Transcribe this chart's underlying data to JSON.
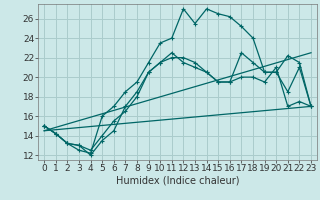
{
  "title": "",
  "xlabel": "Humidex (Indice chaleur)",
  "ylabel": "",
  "bg_color": "#cce8e8",
  "grid_color": "#aacccc",
  "line_color": "#006666",
  "xlim": [
    -0.5,
    23.5
  ],
  "ylim": [
    11.5,
    27.5
  ],
  "xticks": [
    0,
    1,
    2,
    3,
    4,
    5,
    6,
    7,
    8,
    9,
    10,
    11,
    12,
    13,
    14,
    15,
    16,
    17,
    18,
    19,
    20,
    21,
    22,
    23
  ],
  "yticks": [
    12,
    14,
    16,
    18,
    20,
    22,
    24,
    26
  ],
  "line1_x": [
    0,
    1,
    2,
    3,
    4,
    5,
    6,
    7,
    8,
    9,
    10,
    11,
    12,
    13,
    14,
    15,
    16,
    17,
    18,
    19,
    20,
    21,
    22,
    23
  ],
  "line1_y": [
    15.0,
    14.2,
    13.2,
    12.5,
    12.2,
    16.0,
    17.0,
    18.5,
    19.5,
    21.5,
    23.5,
    24.0,
    27.0,
    25.5,
    27.0,
    26.5,
    26.2,
    25.2,
    24.0,
    20.5,
    20.5,
    22.2,
    21.5,
    17.0
  ],
  "line2_x": [
    0,
    1,
    2,
    3,
    4,
    5,
    6,
    7,
    8,
    9,
    10,
    11,
    12,
    13,
    14,
    15,
    16,
    17,
    18,
    19,
    20,
    21,
    22,
    23
  ],
  "line2_y": [
    15.0,
    14.2,
    13.2,
    13.0,
    12.0,
    13.5,
    14.5,
    17.0,
    18.5,
    20.5,
    21.5,
    22.0,
    22.0,
    21.5,
    20.5,
    19.5,
    19.5,
    22.5,
    21.5,
    20.5,
    20.5,
    18.5,
    21.0,
    17.0
  ],
  "line3_x": [
    0,
    1,
    2,
    3,
    4,
    5,
    6,
    7,
    8,
    9,
    10,
    11,
    12,
    13,
    14,
    15,
    16,
    17,
    18,
    19,
    20,
    21,
    22,
    23
  ],
  "line3_y": [
    15.0,
    14.2,
    13.2,
    13.0,
    12.5,
    14.0,
    15.5,
    16.5,
    18.0,
    20.5,
    21.5,
    22.5,
    21.5,
    21.0,
    20.5,
    19.5,
    19.5,
    20.0,
    20.0,
    19.5,
    21.0,
    17.0,
    17.5,
    17.0
  ],
  "line4_x": [
    0,
    23
  ],
  "line4_y": [
    14.5,
    17.0
  ],
  "line5_x": [
    0,
    23
  ],
  "line5_y": [
    14.5,
    22.5
  ],
  "font_size": 6.5,
  "xlabel_fontsize": 7
}
